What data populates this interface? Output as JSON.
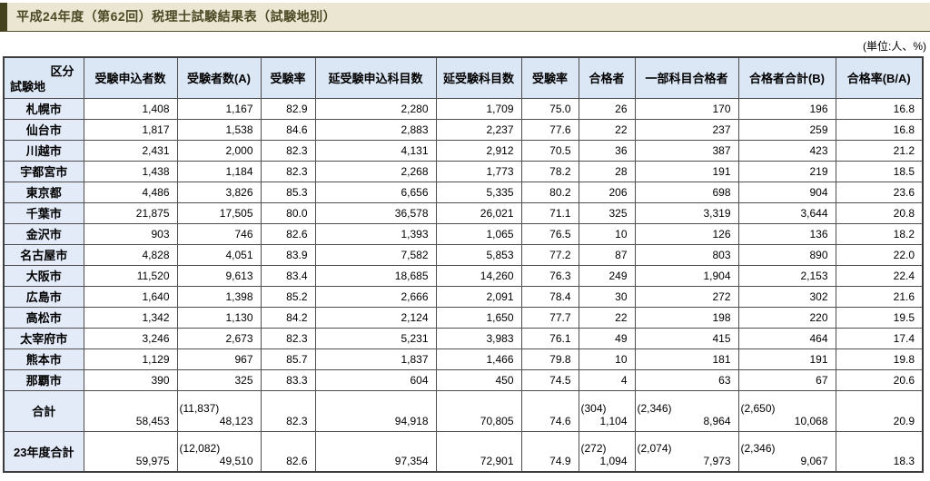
{
  "page": {
    "title": "平成24年度（第62回）税理士試験結果表（試験地別）",
    "units_note": "(単位:人、%)"
  },
  "table": {
    "corner": {
      "top_right": "区分",
      "bottom_left": "試験地"
    },
    "columns": [
      "受験申込者数",
      "受験者数(A)",
      "受験率",
      "延受験申込科目数",
      "延受験科目数",
      "受験率",
      "合格者",
      "一部科目合格者",
      "合格者合計(B)",
      "合格率(B/A)"
    ],
    "rows": [
      {
        "label": "札幌市",
        "cells": [
          "1,408",
          "1,167",
          "82.9",
          "2,280",
          "1,709",
          "75.0",
          "26",
          "170",
          "196",
          "16.8"
        ]
      },
      {
        "label": "仙台市",
        "cells": [
          "1,817",
          "1,538",
          "84.6",
          "2,883",
          "2,237",
          "77.6",
          "22",
          "237",
          "259",
          "16.8"
        ]
      },
      {
        "label": "川越市",
        "cells": [
          "2,431",
          "2,000",
          "82.3",
          "4,131",
          "2,912",
          "70.5",
          "36",
          "387",
          "423",
          "21.2"
        ]
      },
      {
        "label": "宇都宮市",
        "cells": [
          "1,438",
          "1,184",
          "82.3",
          "2,268",
          "1,773",
          "78.2",
          "28",
          "191",
          "219",
          "18.5"
        ]
      },
      {
        "label": "東京都",
        "cells": [
          "4,486",
          "3,826",
          "85.3",
          "6,656",
          "5,335",
          "80.2",
          "206",
          "698",
          "904",
          "23.6"
        ]
      },
      {
        "label": "千葉市",
        "cells": [
          "21,875",
          "17,505",
          "80.0",
          "36,578",
          "26,021",
          "71.1",
          "325",
          "3,319",
          "3,644",
          "20.8"
        ]
      },
      {
        "label": "金沢市",
        "cells": [
          "903",
          "746",
          "82.6",
          "1,393",
          "1,065",
          "76.5",
          "10",
          "126",
          "136",
          "18.2"
        ]
      },
      {
        "label": "名古屋市",
        "cells": [
          "4,828",
          "4,051",
          "83.9",
          "7,582",
          "5,853",
          "77.2",
          "87",
          "803",
          "890",
          "22.0"
        ]
      },
      {
        "label": "大阪市",
        "cells": [
          "11,520",
          "9,613",
          "83.4",
          "18,685",
          "14,260",
          "76.3",
          "249",
          "1,904",
          "2,153",
          "22.4"
        ]
      },
      {
        "label": "広島市",
        "cells": [
          "1,640",
          "1,398",
          "85.2",
          "2,666",
          "2,091",
          "78.4",
          "30",
          "272",
          "302",
          "21.6"
        ]
      },
      {
        "label": "高松市",
        "cells": [
          "1,342",
          "1,130",
          "84.2",
          "2,124",
          "1,650",
          "77.7",
          "22",
          "198",
          "220",
          "19.5"
        ]
      },
      {
        "label": "太宰府市",
        "cells": [
          "3,246",
          "2,673",
          "82.3",
          "5,231",
          "3,983",
          "76.1",
          "49",
          "415",
          "464",
          "17.4"
        ]
      },
      {
        "label": "熊本市",
        "cells": [
          "1,129",
          "967",
          "85.7",
          "1,837",
          "1,466",
          "79.8",
          "10",
          "181",
          "191",
          "19.8"
        ]
      },
      {
        "label": "那覇市",
        "cells": [
          "390",
          "325",
          "83.3",
          "604",
          "450",
          "74.5",
          "4",
          "63",
          "67",
          "20.6"
        ]
      }
    ],
    "total_rows": [
      {
        "label": "合計",
        "cells": [
          "58,453",
          {
            "paren": "(11,837)",
            "value": "48,123"
          },
          "82.3",
          "94,918",
          "70,805",
          "74.6",
          {
            "paren": "(304)",
            "value": "1,104"
          },
          {
            "paren": "(2,346)",
            "value": "8,964"
          },
          {
            "paren": "(2,650)",
            "value": "10,068"
          },
          "20.9"
        ]
      },
      {
        "label": "23年度合計",
        "cells": [
          "59,975",
          {
            "paren": "(12,082)",
            "value": "49,510"
          },
          "82.6",
          "97,354",
          "72,901",
          "74.9",
          {
            "paren": "(272)",
            "value": "1,094"
          },
          {
            "paren": "(2,074)",
            "value": "7,973"
          },
          {
            "paren": "(2,346)",
            "value": "9,067"
          },
          "18.3"
        ]
      }
    ]
  },
  "colors": {
    "title_bar_bg": "#ebe6d2",
    "title_bar_accent": "#44411f",
    "title_text": "#4c4926",
    "header_cell_bg": "#dce7f6",
    "label_cell_bg": "#e3ebf9",
    "grid_border": "#4e4e4e"
  }
}
